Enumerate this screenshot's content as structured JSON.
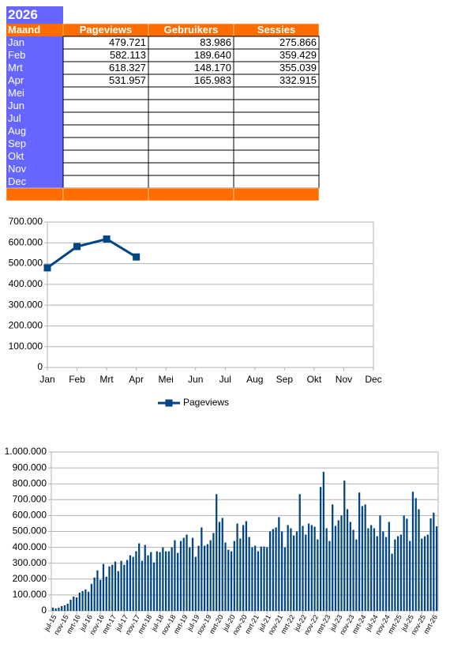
{
  "table": {
    "title": "2026",
    "header": [
      "Maand",
      "Pageviews",
      "Gebruikers",
      "Sessies"
    ],
    "rows": [
      [
        "Jan",
        "479.721",
        "83.986",
        "275.866"
      ],
      [
        "Feb",
        "582.113",
        "189.640",
        "359.429"
      ],
      [
        "Mrt",
        "618.327",
        "148.170",
        "355.039"
      ],
      [
        "Apr",
        "531.957",
        "165.983",
        "332.915"
      ],
      [
        "Mei"
      ],
      [
        "Jun"
      ],
      [
        "Jul"
      ],
      [
        "Aug"
      ],
      [
        "Sep"
      ],
      [
        "Okt"
      ],
      [
        "Nov"
      ],
      [
        "Dec"
      ]
    ]
  },
  "chart_data": [
    {
      "type": "line",
      "categories": [
        "Jan",
        "Feb",
        "Mrt",
        "Apr",
        "Mei",
        "Jun",
        "Jul",
        "Aug",
        "Sep",
        "Okt",
        "Nov",
        "Dec"
      ],
      "series": [
        {
          "name": "Pageviews",
          "color": "#004586",
          "values": [
            479721,
            582113,
            618327,
            531957,
            null,
            null,
            null,
            null,
            null,
            null,
            null,
            null
          ]
        }
      ],
      "ylim": [
        0,
        700000
      ],
      "yticks": [
        0,
        {
          "value": 100000,
          "label": "100.000"
        },
        {
          "value": 200000,
          "label": "200.000"
        },
        {
          "value": 300000,
          "label": "300.000"
        },
        {
          "value": 400000,
          "label": "400.000"
        },
        {
          "value": 500000,
          "label": "500.000"
        },
        {
          "value": 600000,
          "label": "600.000"
        },
        {
          "value": 700000,
          "label": "700.000"
        }
      ],
      "grid": true,
      "legend": "bottom"
    },
    {
      "type": "bar",
      "categories": [
        "jul-15",
        null,
        null,
        null,
        "nov-15",
        null,
        null,
        null,
        "mrt-16",
        null,
        null,
        null,
        "jul-16",
        null,
        null,
        null,
        "nov-16",
        null,
        null,
        null,
        "mrt-17",
        null,
        null,
        null,
        "jul-17",
        null,
        null,
        null,
        "nov-17",
        null,
        null,
        null,
        "mrt-18",
        null,
        null,
        null,
        "jul-18",
        null,
        null,
        null,
        "nov-18",
        null,
        null,
        null,
        "mrt-19",
        null,
        null,
        null,
        "jul-19",
        null,
        null,
        null,
        "nov-19",
        null,
        null,
        null,
        "mrt-20",
        null,
        null,
        null,
        "jul-20",
        null,
        null,
        null,
        "nov-20",
        null,
        null,
        null,
        "mrt-21",
        null,
        null,
        null,
        "jul-21",
        null,
        null,
        null,
        "nov-21",
        null,
        null,
        null,
        "mrt-22",
        null,
        null,
        null,
        "jul-22",
        null,
        null,
        null,
        "nov-22",
        null,
        null,
        null,
        "mrt-23",
        null,
        null,
        null,
        "jul-23",
        null,
        null,
        null,
        "nov-23",
        null,
        null,
        null,
        "mrt-24",
        null,
        null,
        null,
        "jul-24",
        null,
        null,
        null,
        "nov-24",
        null,
        null,
        null,
        "mrt-25",
        null,
        null,
        null,
        "jul-25",
        null,
        null,
        null,
        "nov-25",
        null,
        null,
        null,
        "mrt-26",
        null
      ],
      "values": [
        20000,
        15000,
        20000,
        30000,
        35000,
        45000,
        70000,
        90000,
        85000,
        115000,
        125000,
        135000,
        120000,
        170000,
        210000,
        255000,
        195000,
        295000,
        215000,
        280000,
        290000,
        310000,
        250000,
        315000,
        290000,
        320000,
        350000,
        340000,
        375000,
        425000,
        315000,
        415000,
        350000,
        370000,
        305000,
        375000,
        370000,
        400000,
        375000,
        375000,
        400000,
        445000,
        365000,
        440000,
        460000,
        480000,
        400000,
        460000,
        340000,
        410000,
        525000,
        410000,
        420000,
        445000,
        490000,
        735000,
        560000,
        585000,
        430000,
        385000,
        375000,
        440000,
        550000,
        455000,
        540000,
        565000,
        465000,
        400000,
        410000,
        375000,
        405000,
        405000,
        400000,
        500000,
        515000,
        525000,
        590000,
        500000,
        400000,
        540000,
        520000,
        475000,
        500000,
        735000,
        535000,
        480000,
        550000,
        540000,
        530000,
        450000,
        780000,
        875000,
        520000,
        440000,
        670000,
        535000,
        570000,
        600000,
        820000,
        640000,
        560000,
        510000,
        450000,
        745000,
        660000,
        670000,
        520000,
        540000,
        520000,
        470000,
        600000,
        500000,
        465000,
        560000,
        360000,
        450000,
        470000,
        480000,
        600000,
        580000,
        440000,
        750000,
        710000,
        640000,
        455000,
        470000,
        479721,
        582113,
        618327,
        531957
      ],
      "color": "#004586",
      "ylim": [
        0,
        1000000
      ],
      "yticks": [
        0,
        {
          "value": 100000,
          "label": "100.000"
        },
        {
          "value": 200000,
          "label": "200.000"
        },
        {
          "value": 300000,
          "label": "300.000"
        },
        {
          "value": 400000,
          "label": "400.000"
        },
        {
          "value": 500000,
          "label": "500.000"
        },
        {
          "value": 600000,
          "label": "600.000"
        },
        {
          "value": 700000,
          "label": "700.000"
        },
        {
          "value": 800000,
          "label": "800.000"
        },
        {
          "value": 900000,
          "label": "900.000"
        },
        {
          "value": 1000000,
          "label": "1.000.000"
        }
      ],
      "grid": true
    }
  ]
}
